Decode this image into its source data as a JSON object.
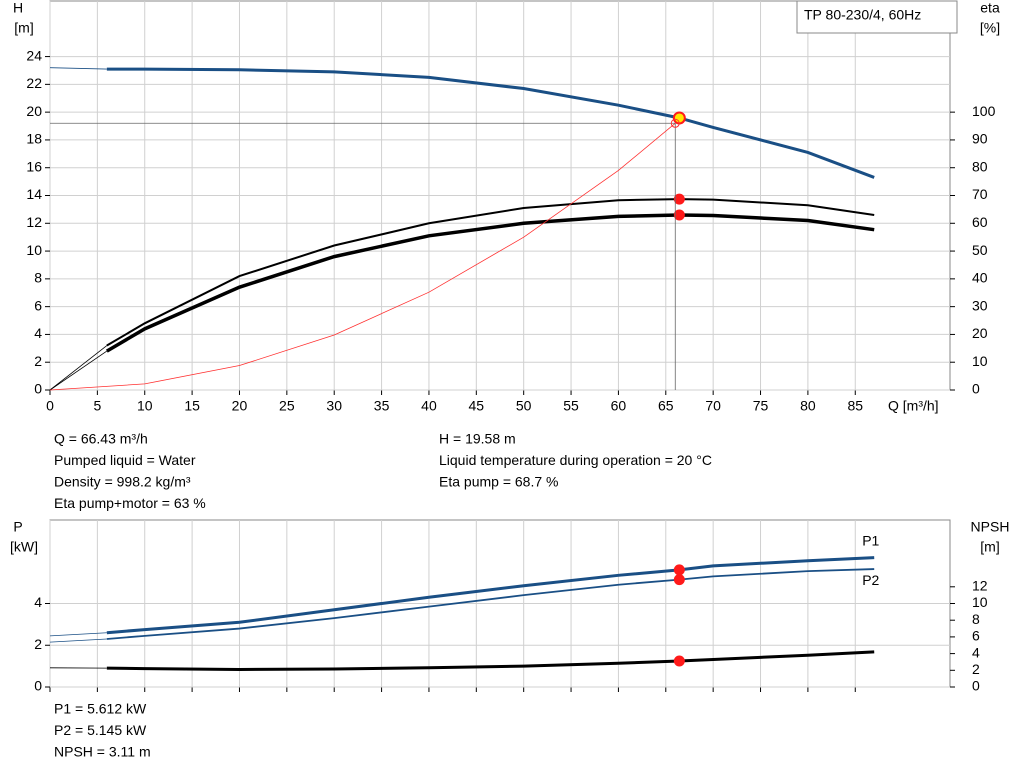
{
  "chart_data": [
    {
      "type": "line",
      "title": "TP 80-230/4, 60Hz",
      "ylabel": "H",
      "yunit": "[m]",
      "y2label": "eta",
      "y2unit": "[%]",
      "xlabel": "Q [m³/h]",
      "xlim": [
        0,
        95
      ],
      "xticks": [
        0,
        5,
        10,
        15,
        20,
        25,
        30,
        35,
        40,
        45,
        50,
        55,
        60,
        65,
        70,
        75,
        80,
        85
      ],
      "ylim": [
        0,
        28
      ],
      "yticks": [
        0,
        2,
        4,
        6,
        8,
        10,
        12,
        14,
        16,
        18,
        20,
        22,
        24
      ],
      "y2lim": [
        0,
        140
      ],
      "y2ticks": [
        0,
        10,
        20,
        30,
        40,
        50,
        60,
        70,
        80,
        90,
        100
      ],
      "grid": true,
      "marker_x": 66.43,
      "x": [
        0,
        6,
        10,
        20,
        30,
        40,
        50,
        60,
        66.43,
        70,
        80,
        87
      ],
      "series": [
        {
          "color": "#1a4f85",
          "width": 3,
          "lead_in": true,
          "marker_color": "#ffe600",
          "values": [
            23.2,
            23.1,
            23.1,
            23.05,
            22.9,
            22.5,
            21.7,
            20.5,
            19.58,
            18.9,
            17.1,
            15.3
          ]
        },
        {
          "color": "#000000",
          "width": 2,
          "lead_in": true,
          "axis": "y2",
          "marker_color": "#ff1a1a",
          "values": [
            0,
            16,
            24,
            41,
            52,
            60,
            65.5,
            68.3,
            68.7,
            68.5,
            66.5,
            63
          ]
        },
        {
          "color": "#000000",
          "width": 3.5,
          "lead_in": true,
          "axis": "y2",
          "marker_color": "#ff1a1a",
          "values": [
            0,
            14,
            22,
            37,
            48,
            55.5,
            60,
            62.5,
            63,
            62.8,
            61,
            57.7
          ]
        },
        {
          "color": "#ff3030",
          "width": 0.8,
          "end_marker": "open",
          "x": [
            0,
            10,
            20,
            30,
            40,
            50,
            60,
            66
          ],
          "values": [
            0,
            0.44,
            1.76,
            3.96,
            7.04,
            11,
            15.8,
            19.2
          ]
        }
      ],
      "info_left": [
        "Q = 66.43 m³/h",
        "Pumped liquid = Water",
        "Density = 998.2 kg/m³",
        "Eta pump+motor = 63 %"
      ],
      "info_right": [
        "H = 19.58 m",
        "Liquid temperature during operation = 20 °C",
        "Eta pump = 68.7 %"
      ]
    },
    {
      "type": "line",
      "ylabel": "P",
      "yunit": "[kW]",
      "y2label": "NPSH",
      "y2unit": "[m]",
      "xlim": [
        0,
        95
      ],
      "xticks": [
        0,
        5,
        10,
        15,
        20,
        25,
        30,
        35,
        40,
        45,
        50,
        55,
        60,
        65,
        70,
        75,
        80,
        85
      ],
      "ylim": [
        0,
        8
      ],
      "yticks": [
        0,
        2,
        4
      ],
      "y2lim": [
        0,
        20
      ],
      "y2ticks": [
        0,
        2,
        4,
        6,
        8,
        10,
        12
      ],
      "grid": true,
      "marker_x": 66.43,
      "x": [
        0,
        6,
        10,
        20,
        30,
        40,
        50,
        60,
        66.43,
        70,
        80,
        87
      ],
      "series": [
        {
          "name": "P1",
          "color": "#1a4f85",
          "width": 3,
          "lead_in": true,
          "marker_color": "#ff1a1a",
          "values": [
            2.45,
            2.6,
            2.75,
            3.1,
            3.7,
            4.3,
            4.85,
            5.35,
            5.612,
            5.8,
            6.05,
            6.2
          ]
        },
        {
          "name": "P2",
          "color": "#1a4f85",
          "width": 1.8,
          "lead_in": true,
          "marker_color": "#ff1a1a",
          "values": [
            2.15,
            2.3,
            2.45,
            2.8,
            3.3,
            3.85,
            4.4,
            4.9,
            5.145,
            5.3,
            5.55,
            5.65
          ]
        },
        {
          "color": "#000000",
          "width": 3,
          "lead_in": true,
          "axis": "y2",
          "marker_color": "#ff1a1a",
          "values": [
            2.3,
            2.26,
            2.2,
            2.1,
            2.15,
            2.3,
            2.5,
            2.85,
            3.11,
            3.3,
            3.8,
            4.2
          ]
        }
      ],
      "info_left": [
        "P1 = 5.612 kW",
        "P2 = 5.145 kW",
        "NPSH = 3.11 m"
      ]
    }
  ]
}
